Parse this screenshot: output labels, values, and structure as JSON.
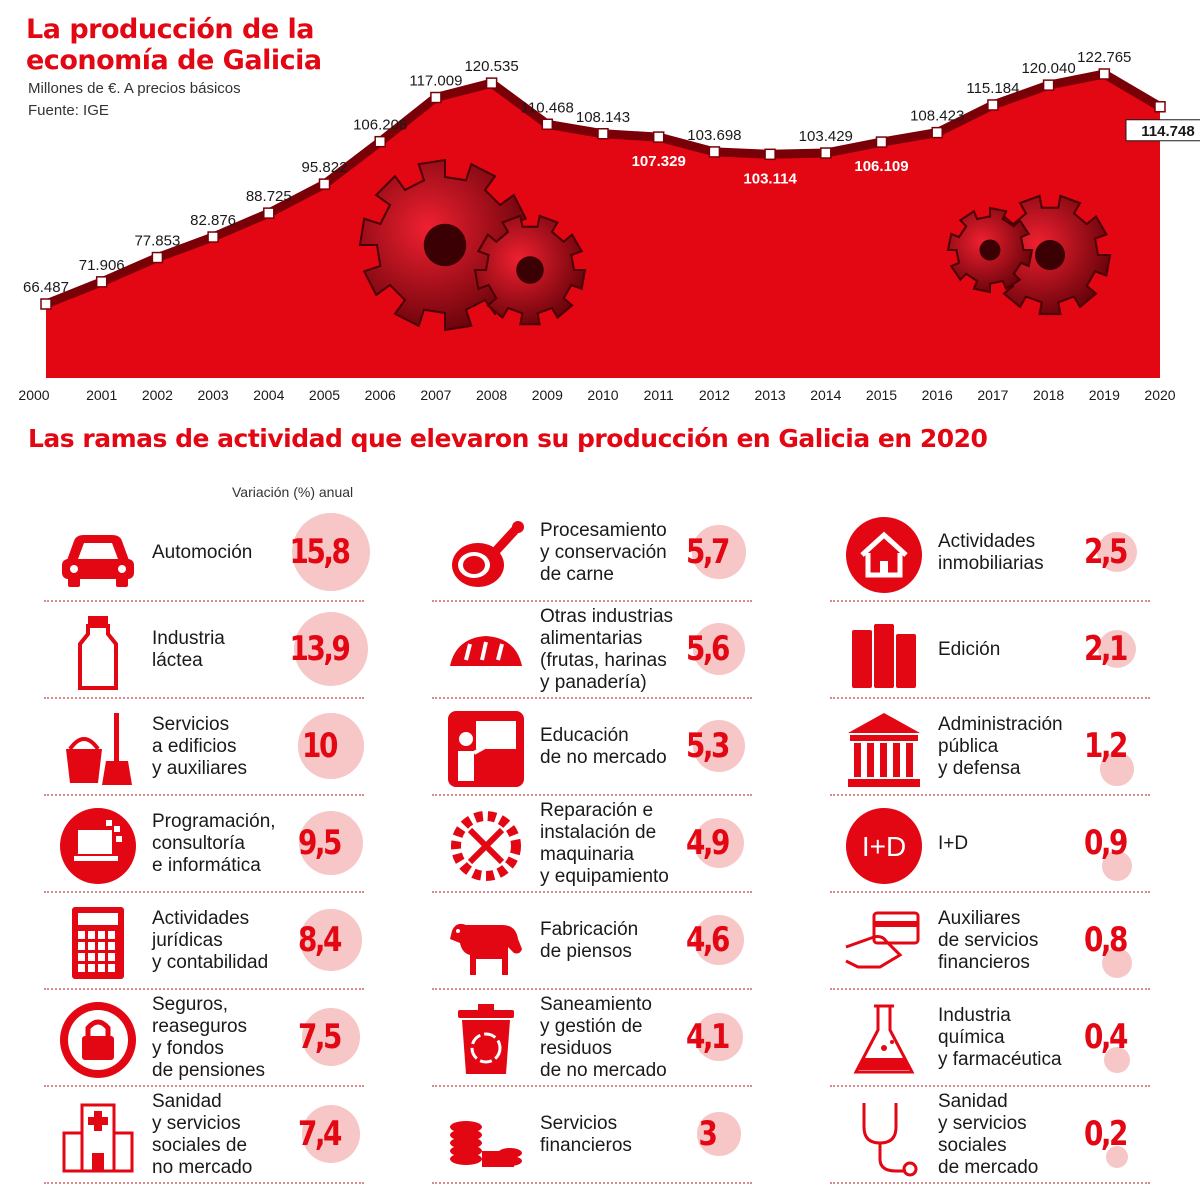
{
  "chart_data": {
    "type": "area",
    "title": "La producción de la economía de Galicia",
    "subtitle": "Millones de €. A precios básicos",
    "source": "Fuente: IGE",
    "x": [
      "2000",
      "2001",
      "2002",
      "2003",
      "2004",
      "2005",
      "2006",
      "2007",
      "2008",
      "2009",
      "2010",
      "2011",
      "2012",
      "2013",
      "2014",
      "2015",
      "2016",
      "2017",
      "2018",
      "2019",
      "2020"
    ],
    "values": [
      66487,
      71906,
      77853,
      82876,
      88725,
      95822,
      106208,
      117009,
      120535,
      110468,
      108143,
      107329,
      103698,
      103114,
      103429,
      106109,
      108423,
      115184,
      120040,
      122765,
      114748
    ],
    "labels": [
      "66.487",
      "71.906",
      "77.853",
      "82.876",
      "88.725",
      "95.822",
      "106.208",
      "117.009",
      "120.535",
      "110.468",
      "108.143",
      "107.329",
      "103.698",
      "103.114",
      "103.429",
      "106.109",
      "108.423",
      "115.184",
      "120.040",
      "122.765",
      "114.748"
    ],
    "colors": {
      "area": "#e30613",
      "line": "#7a0008",
      "marker": "#ffffff"
    }
  },
  "branches": {
    "title": "Las ramas de actividad que elevaron su producción en Galicia en 2020",
    "subhead": "Variación (%) anual",
    "colors": {
      "accent": "#e30613",
      "bubble": "#f7c6c6"
    },
    "items": [
      {
        "label": "Automoción",
        "value": "15,8",
        "pct": 15.8,
        "icon": "car-icon"
      },
      {
        "label": "Industria\nláctea",
        "value": "13,9",
        "pct": 13.9,
        "icon": "milk-bottle-icon"
      },
      {
        "label": "Servicios\na edificios\ny auxiliares",
        "value": "10",
        "pct": 10,
        "icon": "cleaning-bucket-icon"
      },
      {
        "label": "Programación,\nconsultoría\ne informática",
        "value": "9,5",
        "pct": 9.5,
        "icon": "laptop-icon"
      },
      {
        "label": "Actividades\njurídicas\ny contabilidad",
        "value": "8,4",
        "pct": 8.4,
        "icon": "calculator-icon"
      },
      {
        "label": "Seguros,\nreaseguros\ny fondos\nde pensiones",
        "value": "7,5",
        "pct": 7.5,
        "icon": "lock-icon"
      },
      {
        "label": "Sanidad\ny servicios\nsociales de\nno mercado",
        "value": "7,4",
        "pct": 7.4,
        "icon": "hospital-icon"
      },
      {
        "label": "Procesamiento\ny conservación\nde carne",
        "value": "5,7",
        "pct": 5.7,
        "icon": "ham-icon"
      },
      {
        "label": "Otras industrias\nalimentarias\n(frutas, harinas\ny panadería)",
        "value": "5,6",
        "pct": 5.6,
        "icon": "bread-icon"
      },
      {
        "label": "Educación\nde no mercado",
        "value": "5,3",
        "pct": 5.3,
        "icon": "teacher-icon"
      },
      {
        "label": "Reparación e\ninstalación de\nmaquinaria\ny equipamiento",
        "value": "4,9",
        "pct": 4.9,
        "icon": "gear-wrench-icon"
      },
      {
        "label": "Fabricación\nde piensos",
        "value": "4,6",
        "pct": 4.6,
        "icon": "cow-icon"
      },
      {
        "label": "Saneamiento\ny gestión de\nresiduos\nde no mercado",
        "value": "4,1",
        "pct": 4.1,
        "icon": "recycling-bin-icon"
      },
      {
        "label": "Servicios\nfinancieros",
        "value": "3",
        "pct": 3,
        "icon": "coins-icon"
      },
      {
        "label": "Actividades\ninmobiliarias",
        "value": "2,5",
        "pct": 2.5,
        "icon": "house-icon"
      },
      {
        "label": "Edición",
        "value": "2,1",
        "pct": 2.1,
        "icon": "books-icon"
      },
      {
        "label": "Administración\npública\ny defensa",
        "value": "1,2",
        "pct": 1.2,
        "icon": "government-building-icon"
      },
      {
        "label": "I+D",
        "value": "0,9",
        "pct": 0.9,
        "icon": "research-icon",
        "icon_text": "I+D"
      },
      {
        "label": "Auxiliares\nde servicios\nfinancieros",
        "value": "0,8",
        "pct": 0.8,
        "icon": "credit-card-hand-icon"
      },
      {
        "label": "Industria\nquímica\ny farmacéutica",
        "value": "0,4",
        "pct": 0.4,
        "icon": "flask-icon"
      },
      {
        "label": "Sanidad\ny servicios\nsociales\nde mercado",
        "value": "0,2",
        "pct": 0.2,
        "icon": "stethoscope-icon"
      }
    ]
  }
}
